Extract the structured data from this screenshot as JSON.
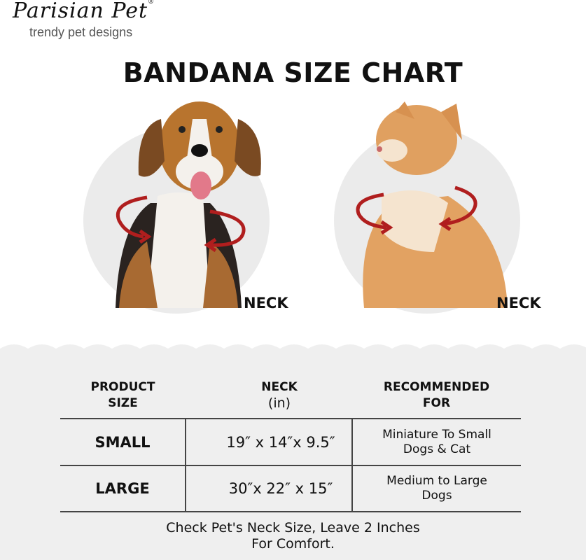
{
  "brand": {
    "name": "Parisian Pet",
    "registered": "®",
    "tagline": "trendy pet designs"
  },
  "title": "BANDANA SIZE CHART",
  "pets": [
    {
      "animal": "dog",
      "label": "NECK"
    },
    {
      "animal": "cat",
      "label": "NECK"
    }
  ],
  "colors": {
    "arrow": "#b01e1e",
    "circle": "#ebebeb",
    "panel": "#efefef"
  },
  "table": {
    "headers": [
      {
        "line1": "PRODUCT",
        "line2": "SIZE"
      },
      {
        "line1": "NECK",
        "line2": "(in)"
      },
      {
        "line1": "RECOMMENDED",
        "line2": "FOR"
      }
    ],
    "rows": [
      {
        "size": "SMALL",
        "neck": "19″ x 14″x 9.5″",
        "rec1": "Miniature To Small",
        "rec2": "Dogs & Cat"
      },
      {
        "size": "LARGE",
        "neck": "30″x 22″ x 15″",
        "rec1": "Medium to Large",
        "rec2": "Dogs"
      }
    ]
  },
  "note": {
    "line1": "Check Pet's Neck Size, Leave 2 Inches",
    "line2": "For Comfort."
  }
}
